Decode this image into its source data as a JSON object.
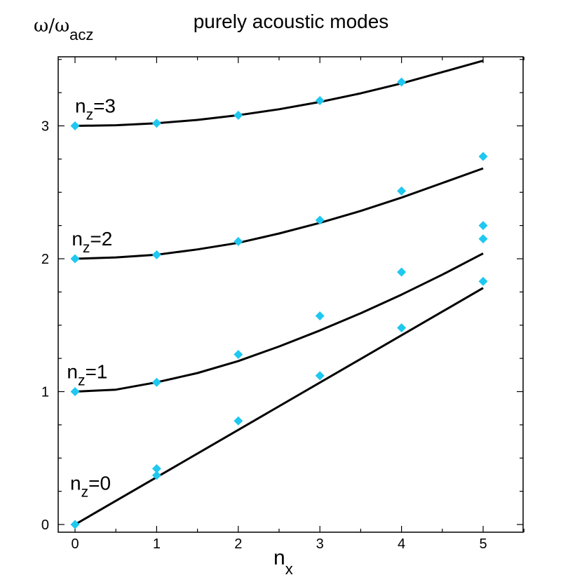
{
  "chart_data": {
    "type": "scatter",
    "title": "purely acoustic modes",
    "ylabel": {
      "main": "ω/ω",
      "sub": "acz"
    },
    "xlabel": {
      "main": "n",
      "sub": "x"
    },
    "xlim": [
      -0.2,
      5.5
    ],
    "ylim": [
      0,
      3.5
    ],
    "x_ticks": [
      0,
      1,
      2,
      3,
      4,
      5
    ],
    "y_ticks": [
      0,
      1,
      2,
      3
    ],
    "grid": false,
    "line_color": "#000000",
    "point_color": "#1ec8f0",
    "series": [
      {
        "label": {
          "main": "n",
          "sub": "z",
          "suffix": "=0"
        },
        "label_pos": [
          -0.06,
          0.26
        ],
        "curve": [
          [
            0,
            0
          ],
          [
            5,
            1.78
          ]
        ],
        "points": [
          [
            0,
            0
          ],
          [
            1,
            0.37
          ],
          [
            1,
            0.42
          ],
          [
            2,
            0.78
          ],
          [
            3,
            1.12
          ],
          [
            4,
            1.48
          ],
          [
            5,
            1.83
          ]
        ]
      },
      {
        "label": {
          "main": "n",
          "sub": "z",
          "suffix": "=1"
        },
        "label_pos": [
          -0.1,
          1.1
        ],
        "curve": [
          [
            0,
            1.0
          ],
          [
            0.5,
            1.015
          ],
          [
            1,
            1.07
          ],
          [
            1.5,
            1.14
          ],
          [
            2,
            1.23
          ],
          [
            2.5,
            1.34
          ],
          [
            3,
            1.46
          ],
          [
            3.5,
            1.59
          ],
          [
            4,
            1.73
          ],
          [
            4.5,
            1.88
          ],
          [
            5,
            2.04
          ]
        ],
        "points": [
          [
            0,
            1.0
          ],
          [
            1,
            1.07
          ],
          [
            2,
            1.28
          ],
          [
            3,
            1.57
          ],
          [
            4,
            1.9
          ],
          [
            5,
            2.15
          ],
          [
            5,
            2.25
          ]
        ]
      },
      {
        "label": {
          "main": "n",
          "sub": "z",
          "suffix": "=2"
        },
        "label_pos": [
          -0.04,
          2.1
        ],
        "curve": [
          [
            0,
            2.0
          ],
          [
            0.5,
            2.01
          ],
          [
            1,
            2.03
          ],
          [
            1.5,
            2.07
          ],
          [
            2,
            2.12
          ],
          [
            2.5,
            2.19
          ],
          [
            3,
            2.27
          ],
          [
            3.5,
            2.36
          ],
          [
            4,
            2.46
          ],
          [
            4.5,
            2.57
          ],
          [
            5,
            2.68
          ]
        ],
        "points": [
          [
            0,
            2.0
          ],
          [
            1,
            2.03
          ],
          [
            2,
            2.13
          ],
          [
            3,
            2.29
          ],
          [
            4,
            2.51
          ],
          [
            5,
            2.77
          ]
        ]
      },
      {
        "label": {
          "main": "n",
          "sub": "z",
          "suffix": "=3"
        },
        "label_pos": [
          0.0,
          3.1
        ],
        "curve": [
          [
            0,
            3.0
          ],
          [
            0.5,
            3.005
          ],
          [
            1,
            3.02
          ],
          [
            1.5,
            3.045
          ],
          [
            2,
            3.08
          ],
          [
            2.5,
            3.125
          ],
          [
            3,
            3.18
          ],
          [
            3.5,
            3.245
          ],
          [
            4,
            3.32
          ],
          [
            4.5,
            3.405
          ],
          [
            5,
            3.49
          ]
        ],
        "points": [
          [
            0,
            3.0
          ],
          [
            1,
            3.02
          ],
          [
            2,
            3.08
          ],
          [
            3,
            3.19
          ],
          [
            4,
            3.33
          ]
        ]
      }
    ]
  }
}
